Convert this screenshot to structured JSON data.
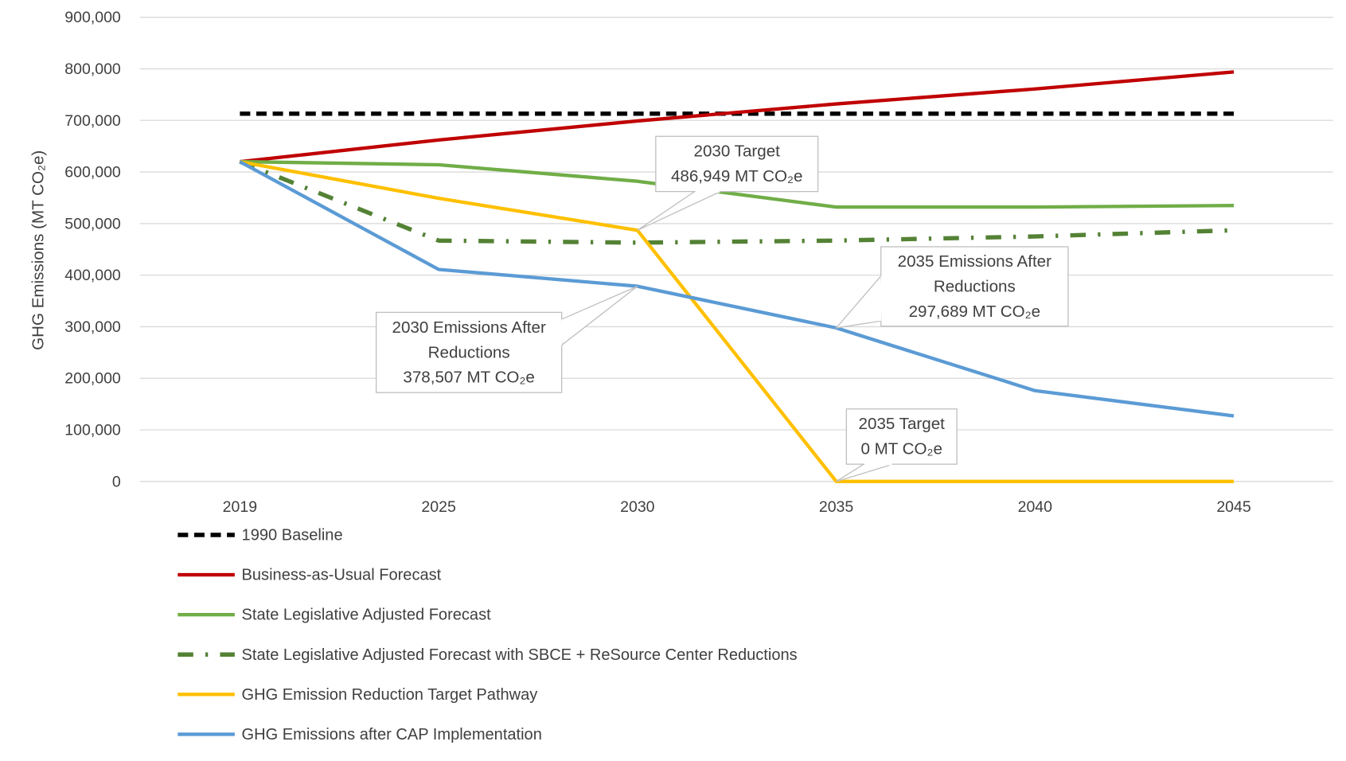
{
  "chart_data": {
    "type": "line",
    "title": "",
    "xlabel": "",
    "ylabel": "GHG Emissions (MT CO₂e)",
    "categories": [
      "2019",
      "2025",
      "2030",
      "2035",
      "2040",
      "2045"
    ],
    "ylim": [
      0,
      900000
    ],
    "yticks": [
      0,
      100000,
      200000,
      300000,
      400000,
      500000,
      600000,
      700000,
      800000,
      900000
    ],
    "ytick_labels": [
      "0",
      "100,000",
      "200,000",
      "300,000",
      "400,000",
      "500,000",
      "600,000",
      "700,000",
      "800,000",
      "900,000"
    ],
    "grid": true,
    "legend_position": "bottom-left",
    "series": [
      {
        "name": "1990 Baseline",
        "color": "#000000",
        "style": "dashed",
        "values": [
          713000,
          713000,
          713000,
          713000,
          713000,
          713000
        ]
      },
      {
        "name": "Business-as-Usual Forecast",
        "color": "#C00000",
        "style": "solid",
        "values": [
          620000,
          662000,
          699000,
          732000,
          761000,
          794000
        ]
      },
      {
        "name": "State Legislative Adjusted Forecast",
        "color": "#70AD47",
        "style": "solid",
        "values": [
          620000,
          614000,
          582000,
          532000,
          532000,
          535000
        ]
      },
      {
        "name": "State Legislative Adjusted Forecast with SBCE + ReSource Center Reductions",
        "color": "#548235",
        "style": "dashdot",
        "values": [
          620000,
          467000,
          463000,
          467000,
          475000,
          487000
        ]
      },
      {
        "name": "GHG Emission Reduction Target Pathway",
        "color": "#FFC000",
        "style": "solid",
        "values": [
          620000,
          549000,
          486949,
          0,
          0,
          0
        ]
      },
      {
        "name": "GHG Emissions after CAP Implementation",
        "color": "#5B9BD5",
        "style": "solid",
        "values": [
          620000,
          411000,
          378507,
          297689,
          176000,
          127000
        ]
      }
    ],
    "annotations": [
      {
        "lines": [
          "2030 Target",
          "486,949 MT CO₂e"
        ],
        "category": "2030",
        "value": 486949
      },
      {
        "lines": [
          "2030 Emissions After",
          "Reductions",
          "378,507 MT CO₂e"
        ],
        "category": "2030",
        "value": 378507
      },
      {
        "lines": [
          "2035 Emissions After",
          "Reductions",
          "297,689 MT CO₂e"
        ],
        "category": "2035",
        "value": 297689
      },
      {
        "lines": [
          "2035 Target",
          "0 MT CO₂e"
        ],
        "category": "2035",
        "value": 0
      }
    ]
  }
}
